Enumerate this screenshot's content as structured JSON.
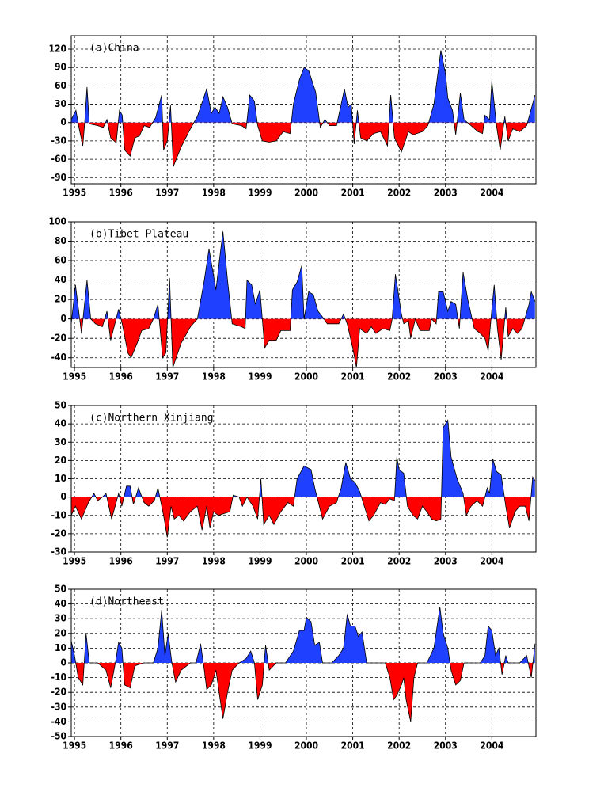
{
  "chart_data": [
    {
      "type": "area",
      "title": "(a)China",
      "color_positive": "#2040ff",
      "color_negative": "#ff0000",
      "grid": true,
      "xlim": [
        1994.93,
        2004.95
      ],
      "ylim": [
        -100,
        142
      ],
      "xticks": [
        1995,
        1996,
        1997,
        1998,
        1999,
        2000,
        2001,
        2002,
        2003,
        2004
      ],
      "yticks": [
        120,
        90,
        60,
        30,
        0,
        -30,
        -60,
        -90
      ],
      "x": [
        1994.93,
        1995.03,
        1995.1,
        1995.18,
        1995.22,
        1995.27,
        1995.32,
        1995.5,
        1995.62,
        1995.7,
        1995.78,
        1995.9,
        1995.97,
        1996.03,
        1996.08,
        1996.2,
        1996.3,
        1996.4,
        1996.5,
        1996.62,
        1996.75,
        1996.88,
        1996.92,
        1997.0,
        1997.07,
        1997.13,
        1997.3,
        1997.5,
        1997.65,
        1997.85,
        1997.95,
        1998.03,
        1998.12,
        1998.2,
        1998.3,
        1998.4,
        1998.6,
        1998.7,
        1998.78,
        1998.88,
        1998.95,
        1999.05,
        1999.2,
        1999.35,
        1999.5,
        1999.65,
        1999.72,
        1999.85,
        1999.95,
        2000.05,
        2000.2,
        2000.3,
        2000.4,
        2000.5,
        2000.65,
        2000.75,
        2000.82,
        2000.9,
        2000.97,
        2001.03,
        2001.1,
        2001.17,
        2001.3,
        2001.45,
        2001.6,
        2001.75,
        2001.82,
        2001.9,
        2002.05,
        2002.2,
        2002.3,
        2002.5,
        2002.62,
        2002.75,
        2002.9,
        2003.0,
        2003.05,
        2003.15,
        2003.22,
        2003.32,
        2003.4,
        2003.55,
        2003.7,
        2003.8,
        2003.85,
        2003.95,
        2004.0,
        2004.1,
        2004.18,
        2004.28,
        2004.35,
        2004.45,
        2004.6,
        2004.75,
        2004.93
      ],
      "values": [
        5,
        20,
        -10,
        -38,
        0,
        58,
        -2,
        -5,
        -8,
        5,
        -25,
        -33,
        20,
        12,
        -45,
        -55,
        -25,
        -22,
        -5,
        -8,
        8,
        45,
        -45,
        -30,
        28,
        -72,
        -40,
        -10,
        10,
        55,
        15,
        25,
        15,
        42,
        25,
        -2,
        -5,
        -10,
        45,
        35,
        -5,
        -30,
        -32,
        -30,
        -15,
        -18,
        30,
        70,
        90,
        85,
        50,
        -8,
        5,
        -5,
        -5,
        30,
        55,
        25,
        30,
        -35,
        20,
        -25,
        -30,
        -18,
        -15,
        -38,
        45,
        -25,
        -48,
        -15,
        -20,
        -15,
        -5,
        30,
        118,
        80,
        40,
        20,
        -20,
        48,
        5,
        -5,
        -15,
        -18,
        12,
        5,
        68,
        -5,
        -45,
        10,
        -30,
        -10,
        -15,
        -5,
        45
      ]
    },
    {
      "type": "area",
      "title": "(b)Tibet Plateau",
      "color_positive": "#2040ff",
      "color_negative": "#ff0000",
      "grid": true,
      "xlim": [
        1994.93,
        2004.95
      ],
      "ylim": [
        -50,
        100
      ],
      "xticks": [
        1995,
        1996,
        1997,
        1998,
        1999,
        2000,
        2001,
        2002,
        2003,
        2004
      ],
      "yticks": [
        100,
        80,
        60,
        40,
        20,
        0,
        -20,
        -40
      ],
      "x": [
        1994.93,
        1995.02,
        1995.15,
        1995.27,
        1995.35,
        1995.45,
        1995.6,
        1995.7,
        1995.78,
        1995.95,
        1996.03,
        1996.15,
        1996.22,
        1996.35,
        1996.45,
        1996.6,
        1996.7,
        1996.8,
        1996.9,
        1996.97,
        1997.05,
        1997.12,
        1997.3,
        1997.5,
        1997.65,
        1997.8,
        1997.9,
        1998.05,
        1998.15,
        1998.2,
        1998.3,
        1998.4,
        1998.6,
        1998.68,
        1998.72,
        1998.82,
        1998.9,
        1999.0,
        1999.1,
        1999.2,
        1999.35,
        1999.45,
        1999.65,
        1999.7,
        1999.8,
        1999.9,
        1999.95,
        2000.05,
        2000.15,
        2000.25,
        2000.35,
        2000.45,
        2000.7,
        2000.8,
        2000.88,
        2001.0,
        2001.08,
        2001.15,
        2001.3,
        2001.4,
        2001.5,
        2001.65,
        2001.8,
        2001.85,
        2001.92,
        2002.05,
        2002.1,
        2002.2,
        2002.25,
        2002.35,
        2002.45,
        2002.65,
        2002.7,
        2002.8,
        2002.85,
        2002.95,
        2003.05,
        2003.12,
        2003.22,
        2003.3,
        2003.38,
        2003.48,
        2003.55,
        2003.62,
        2003.75,
        2003.85,
        2003.92,
        2004.0,
        2004.05,
        2004.12,
        2004.2,
        2004.3,
        2004.35,
        2004.45,
        2004.55,
        2004.65,
        2004.8,
        2004.85,
        2004.93
      ],
      "values": [
        -5,
        35,
        -15,
        40,
        0,
        -5,
        -8,
        8,
        -22,
        10,
        -5,
        -35,
        -40,
        -25,
        -12,
        -10,
        0,
        15,
        -40,
        -35,
        42,
        -50,
        -25,
        -8,
        0,
        40,
        72,
        30,
        70,
        90,
        40,
        -5,
        -8,
        -10,
        40,
        35,
        15,
        30,
        -30,
        -22,
        -22,
        -12,
        -12,
        30,
        38,
        55,
        0,
        28,
        25,
        8,
        2,
        -5,
        -5,
        5,
        -5,
        -30,
        -50,
        -10,
        -15,
        -8,
        -15,
        -10,
        -12,
        0,
        46,
        5,
        -5,
        -2,
        -20,
        0,
        -12,
        -12,
        0,
        -5,
        28,
        28,
        8,
        18,
        15,
        -10,
        48,
        20,
        5,
        -10,
        -15,
        -20,
        -33,
        10,
        35,
        -10,
        -42,
        12,
        -18,
        -10,
        -15,
        -10,
        15,
        28,
        18
      ]
    },
    {
      "type": "area",
      "title": "(c)Northern Xinjiang",
      "color_positive": "#2040ff",
      "color_negative": "#ff0000",
      "grid": true,
      "xlim": [
        1994.93,
        2004.95
      ],
      "ylim": [
        -30,
        50
      ],
      "xticks": [
        1995,
        1996,
        1997,
        1998,
        1999,
        2000,
        2001,
        2002,
        2003,
        2004
      ],
      "yticks": [
        50,
        40,
        30,
        20,
        10,
        0,
        -10,
        -20,
        -30
      ],
      "x": [
        1994.93,
        1995.02,
        1995.15,
        1995.3,
        1995.42,
        1995.5,
        1995.6,
        1995.68,
        1995.8,
        1995.95,
        1996.02,
        1996.12,
        1996.2,
        1996.27,
        1996.38,
        1996.5,
        1996.6,
        1996.72,
        1996.8,
        1996.92,
        1997.0,
        1997.08,
        1997.15,
        1997.25,
        1997.35,
        1997.5,
        1997.65,
        1997.75,
        1997.85,
        1997.92,
        1998.0,
        1998.1,
        1998.35,
        1998.42,
        1998.55,
        1998.62,
        1998.72,
        1998.85,
        1998.95,
        1999.02,
        1999.08,
        1999.2,
        1999.3,
        1999.45,
        1999.6,
        1999.72,
        1999.8,
        1999.95,
        2000.1,
        2000.18,
        2000.35,
        2000.5,
        2000.65,
        2000.75,
        2000.85,
        2000.95,
        2001.05,
        2001.15,
        2001.25,
        2001.35,
        2001.45,
        2001.6,
        2001.7,
        2001.8,
        2001.9,
        2001.95,
        2002.0,
        2002.1,
        2002.18,
        2002.3,
        2002.4,
        2002.5,
        2002.6,
        2002.7,
        2002.8,
        2002.9,
        2002.95,
        2003.05,
        2003.12,
        2003.25,
        2003.38,
        2003.45,
        2003.55,
        2003.68,
        2003.8,
        2003.9,
        2003.95,
        2004.02,
        2004.1,
        2004.2,
        2004.3,
        2004.38,
        2004.5,
        2004.6,
        2004.72,
        2004.8,
        2004.88,
        2004.93
      ],
      "values": [
        -10,
        -5,
        -12,
        -3,
        2,
        -2,
        0,
        2,
        -12,
        2,
        -5,
        6,
        6,
        -4,
        5,
        -3,
        -5,
        -2,
        5,
        -10,
        -22,
        -5,
        -12,
        -10,
        -13,
        -8,
        -5,
        -18,
        -5,
        -17,
        -8,
        -10,
        -8,
        1,
        0,
        -5,
        0,
        -5,
        -12,
        10,
        -15,
        -10,
        -15,
        -8,
        -3,
        -5,
        10,
        17,
        15,
        5,
        -12,
        -5,
        -3,
        5,
        19,
        10,
        8,
        3,
        -5,
        -13,
        -10,
        -3,
        -4,
        -1,
        -2,
        22,
        15,
        13,
        -5,
        -10,
        -12,
        -5,
        -8,
        -12,
        -13,
        -12,
        38,
        42,
        22,
        10,
        2,
        -10,
        -5,
        -2,
        -5,
        5,
        2,
        21,
        14,
        12,
        -5,
        -17,
        -8,
        -5,
        -5,
        -13,
        11,
        9
      ]
    },
    {
      "type": "area",
      "title": "(d)Northeast",
      "color_positive": "#2040ff",
      "color_negative": "#ff0000",
      "grid": true,
      "xlim": [
        1994.93,
        2004.95
      ],
      "ylim": [
        -50,
        50
      ],
      "xticks": [
        1995,
        1996,
        1997,
        1998,
        1999,
        2000,
        2001,
        2002,
        2003,
        2004
      ],
      "yticks": [
        50,
        40,
        30,
        20,
        10,
        0,
        -10,
        -20,
        -30,
        -40,
        -50
      ],
      "x": [
        1994.93,
        1995.0,
        1995.08,
        1995.18,
        1995.25,
        1995.32,
        1995.5,
        1995.68,
        1995.78,
        1995.88,
        1995.95,
        1996.02,
        1996.08,
        1996.2,
        1996.3,
        1996.5,
        1996.7,
        1996.8,
        1996.88,
        1996.95,
        1997.02,
        1997.1,
        1997.18,
        1997.3,
        1997.5,
        1997.62,
        1997.72,
        1997.8,
        1997.85,
        1997.95,
        1998.05,
        1998.2,
        1998.3,
        1998.4,
        1998.55,
        1998.7,
        1998.8,
        1998.88,
        1998.95,
        1999.05,
        1999.12,
        1999.2,
        1999.35,
        1999.55,
        1999.72,
        1999.85,
        1999.95,
        2000.0,
        2000.1,
        2000.18,
        2000.28,
        2000.35,
        2000.55,
        2000.7,
        2000.8,
        2000.88,
        2000.95,
        2001.05,
        2001.12,
        2001.2,
        2001.3,
        2001.5,
        2001.7,
        2001.8,
        2001.88,
        2001.95,
        2002.05,
        2002.1,
        2002.15,
        2002.25,
        2002.32,
        2002.4,
        2002.6,
        2002.75,
        2002.88,
        2002.95,
        2003.05,
        2003.12,
        2003.22,
        2003.32,
        2003.4,
        2003.6,
        2003.75,
        2003.85,
        2003.92,
        2004.0,
        2004.08,
        2004.15,
        2004.22,
        2004.3,
        2004.35,
        2004.6,
        2004.75,
        2004.85,
        2004.93
      ],
      "values": [
        15,
        5,
        -10,
        -15,
        20,
        0,
        0,
        -5,
        -17,
        0,
        14,
        10,
        -15,
        -17,
        -2,
        0,
        0,
        10,
        36,
        5,
        20,
        0,
        -13,
        -5,
        0,
        0,
        13,
        -5,
        -18,
        -15,
        -5,
        -38,
        -20,
        -5,
        0,
        3,
        8,
        0,
        -25,
        -15,
        12,
        -5,
        0,
        0,
        8,
        22,
        22,
        31,
        28,
        12,
        14,
        0,
        0,
        5,
        10,
        33,
        25,
        25,
        18,
        21,
        0,
        0,
        0,
        -10,
        -25,
        -22,
        -15,
        -10,
        -25,
        -40,
        -10,
        0,
        0,
        10,
        38,
        20,
        10,
        -5,
        -15,
        -12,
        0,
        0,
        0,
        5,
        25,
        22,
        5,
        10,
        -8,
        5,
        0,
        0,
        5,
        -10,
        13
      ]
    }
  ]
}
